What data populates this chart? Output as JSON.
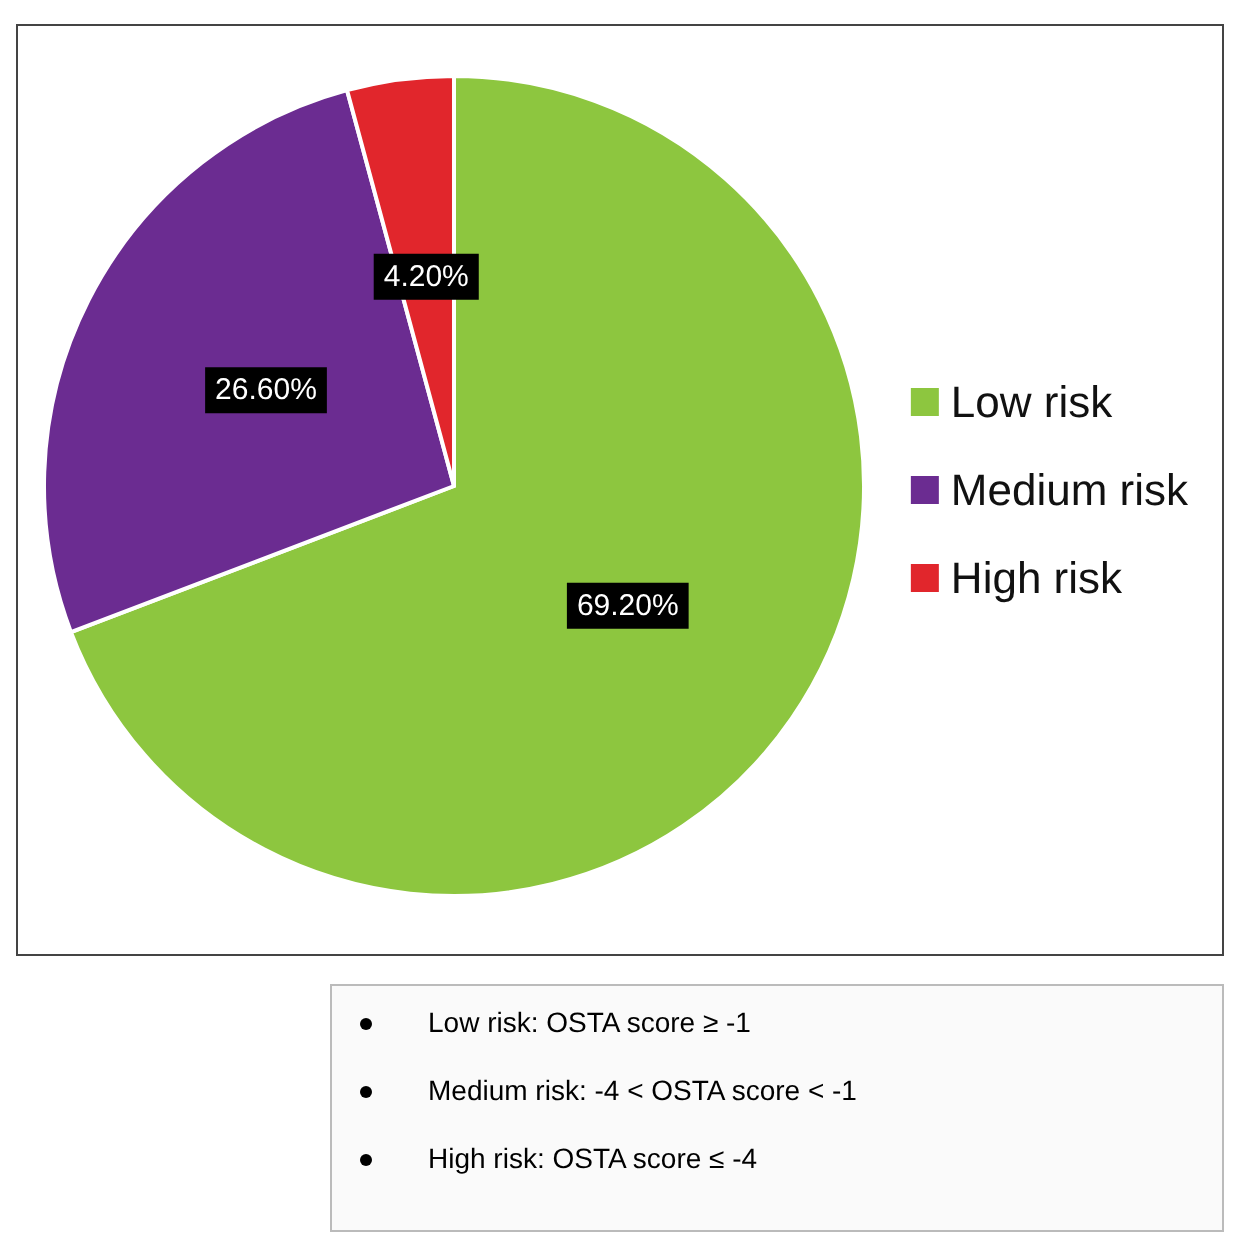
{
  "chart_data": {
    "type": "pie",
    "categories": [
      "Low risk",
      "Medium risk",
      "High risk"
    ],
    "values": [
      69.2,
      26.6,
      4.2
    ],
    "value_labels": [
      "69.20%",
      "26.60%",
      "4.20%"
    ],
    "colors": [
      "#8dc63f",
      "#6b2c91",
      "#e1262c"
    ],
    "legend": "right",
    "annotations": [
      "Low risk: OSTA score ≥ -1",
      "Medium risk: -4 < OSTA score < -1",
      "High risk: OSTA score ≤ -4"
    ]
  }
}
